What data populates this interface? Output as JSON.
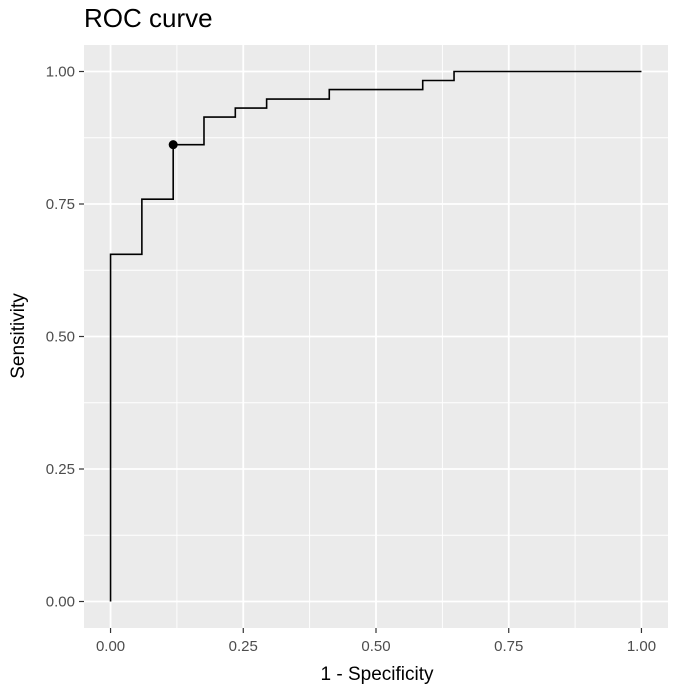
{
  "chart_data": {
    "type": "line",
    "title": "ROC curve",
    "xlabel": "1 - Specificity",
    "ylabel": "Sensitivity",
    "xlim": [
      -0.05,
      1.05
    ],
    "ylim": [
      -0.05,
      1.05
    ],
    "grid": true,
    "x_ticks": [
      0,
      0.25,
      0.5,
      0.75,
      1
    ],
    "x_tick_labels": [
      "0.00",
      "0.25",
      "0.50",
      "0.75",
      "1.00"
    ],
    "y_ticks": [
      0,
      0.25,
      0.5,
      0.75,
      1
    ],
    "y_tick_labels": [
      "0.00",
      "0.25",
      "0.50",
      "0.75",
      "1.00"
    ],
    "series": [
      {
        "points": [
          [
            0,
            0
          ],
          [
            0,
            0.655
          ],
          [
            0.059,
            0.655
          ],
          [
            0.059,
            0.759
          ],
          [
            0.118,
            0.759
          ],
          [
            0.118,
            0.862
          ],
          [
            0.176,
            0.862
          ],
          [
            0.176,
            0.914
          ],
          [
            0.235,
            0.914
          ],
          [
            0.235,
            0.931
          ],
          [
            0.294,
            0.931
          ],
          [
            0.294,
            0.948
          ],
          [
            0.412,
            0.948
          ],
          [
            0.412,
            0.966
          ],
          [
            0.588,
            0.966
          ],
          [
            0.588,
            0.983
          ],
          [
            0.647,
            0.983
          ],
          [
            0.647,
            1.0
          ],
          [
            1.0,
            1.0
          ]
        ],
        "color": "#000000"
      }
    ],
    "highlight_point": {
      "x": 0.118,
      "y": 0.862
    },
    "colors": {
      "panel": "#ebebeb",
      "grid": "#ffffff",
      "line": "#000000",
      "tick_text": "#4d4d4d"
    }
  }
}
